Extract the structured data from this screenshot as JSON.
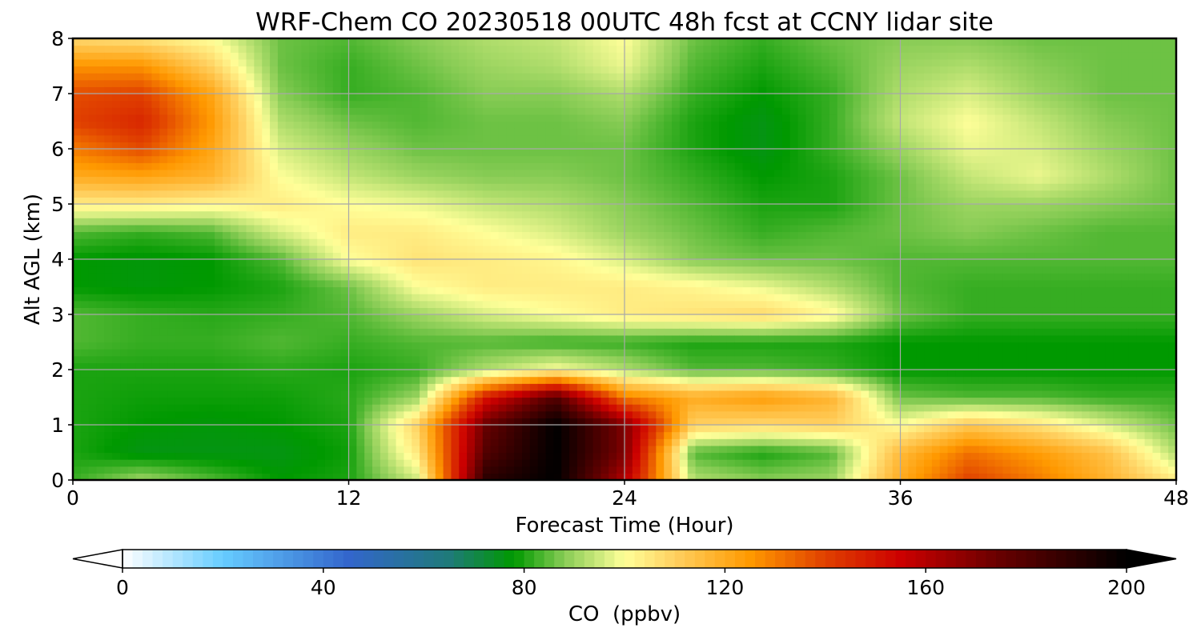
{
  "chart_data": {
    "type": "heatmap",
    "title": "WRF-Chem CO  20230518 00UTC 48h fcst at CCNY lidar site",
    "xlabel": "Forecast Time (Hour)",
    "ylabel": "Alt AGL (km)",
    "xlim": [
      0,
      48
    ],
    "ylim": [
      0,
      8
    ],
    "x_ticks": [
      "0",
      "12",
      "24",
      "36",
      "48"
    ],
    "y_ticks": [
      "0",
      "1",
      "2",
      "3",
      "4",
      "5",
      "6",
      "7",
      "8"
    ],
    "grid": true,
    "x": [
      0,
      3,
      6,
      9,
      12,
      15,
      18,
      21,
      24,
      27,
      30,
      33,
      36,
      39,
      42,
      45,
      48
    ],
    "y": [
      0,
      0.5,
      1,
      1.5,
      2,
      2.5,
      3,
      3.5,
      4,
      4.5,
      5,
      5.5,
      6,
      6.5,
      7,
      7.5,
      8
    ],
    "z": [
      [
        82,
        90,
        84,
        78,
        80,
        95,
        190,
        200,
        160,
        92,
        88,
        90,
        120,
        140,
        130,
        118,
        104
      ],
      [
        80,
        76,
        76,
        76,
        79,
        105,
        180,
        200,
        170,
        84,
        80,
        84,
        116,
        132,
        124,
        114,
        92
      ],
      [
        80,
        78,
        77,
        78,
        80,
        110,
        175,
        200,
        170,
        110,
        108,
        110,
        100,
        112,
        106,
        96,
        86
      ],
      [
        80,
        79,
        79,
        79,
        81,
        90,
        150,
        180,
        130,
        120,
        124,
        118,
        86,
        84,
        84,
        82,
        82
      ],
      [
        80,
        80,
        80,
        81,
        80,
        82,
        92,
        100,
        92,
        84,
        84,
        82,
        78,
        78,
        78,
        78,
        78
      ],
      [
        84,
        82,
        82,
        84,
        82,
        84,
        84,
        82,
        82,
        80,
        80,
        80,
        78,
        78,
        78,
        78,
        78
      ],
      [
        84,
        82,
        81,
        82,
        84,
        90,
        96,
        100,
        104,
        106,
        108,
        102,
        86,
        82,
        82,
        82,
        82
      ],
      [
        78,
        77,
        78,
        80,
        86,
        100,
        104,
        104,
        104,
        102,
        98,
        92,
        84,
        82,
        82,
        82,
        82
      ],
      [
        78,
        77,
        78,
        84,
        100,
        106,
        104,
        102,
        96,
        88,
        86,
        86,
        84,
        84,
        84,
        84,
        84
      ],
      [
        84,
        82,
        84,
        96,
        104,
        104,
        100,
        96,
        90,
        86,
        82,
        84,
        86,
        88,
        86,
        84,
        84
      ],
      [
        104,
        104,
        102,
        104,
        100,
        98,
        94,
        92,
        88,
        84,
        80,
        80,
        86,
        90,
        90,
        88,
        86
      ],
      [
        120,
        122,
        118,
        100,
        94,
        90,
        88,
        88,
        86,
        82,
        78,
        80,
        86,
        94,
        98,
        92,
        86
      ],
      [
        130,
        138,
        122,
        96,
        90,
        86,
        86,
        86,
        86,
        80,
        76,
        82,
        90,
        98,
        96,
        90,
        86
      ],
      [
        140,
        146,
        125,
        92,
        86,
        84,
        86,
        86,
        88,
        80,
        76,
        82,
        94,
        100,
        94,
        88,
        86
      ],
      [
        138,
        140,
        122,
        88,
        82,
        84,
        88,
        88,
        92,
        82,
        78,
        82,
        92,
        96,
        90,
        86,
        86
      ],
      [
        126,
        126,
        110,
        86,
        82,
        86,
        90,
        92,
        98,
        84,
        80,
        84,
        90,
        92,
        88,
        86,
        86
      ],
      [
        108,
        106,
        100,
        86,
        84,
        88,
        92,
        94,
        100,
        86,
        82,
        86,
        88,
        88,
        86,
        86,
        86
      ]
    ],
    "colorbar": {
      "label": "CO  (ppbv)",
      "min": 0,
      "max": 200,
      "ticks": [
        "0",
        "40",
        "80",
        "120",
        "160",
        "200"
      ],
      "extend": "both",
      "stops": [
        {
          "v": 0,
          "c": "#ffffff"
        },
        {
          "v": 20,
          "c": "#66ccff"
        },
        {
          "v": 45,
          "c": "#3366cc"
        },
        {
          "v": 65,
          "c": "#1f7a7a"
        },
        {
          "v": 78,
          "c": "#009900"
        },
        {
          "v": 88,
          "c": "#88cc55"
        },
        {
          "v": 100,
          "c": "#ffff99"
        },
        {
          "v": 110,
          "c": "#ffd060"
        },
        {
          "v": 125,
          "c": "#ff9900"
        },
        {
          "v": 140,
          "c": "#e04000"
        },
        {
          "v": 155,
          "c": "#cc0000"
        },
        {
          "v": 175,
          "c": "#660000"
        },
        {
          "v": 200,
          "c": "#000000"
        }
      ]
    }
  }
}
